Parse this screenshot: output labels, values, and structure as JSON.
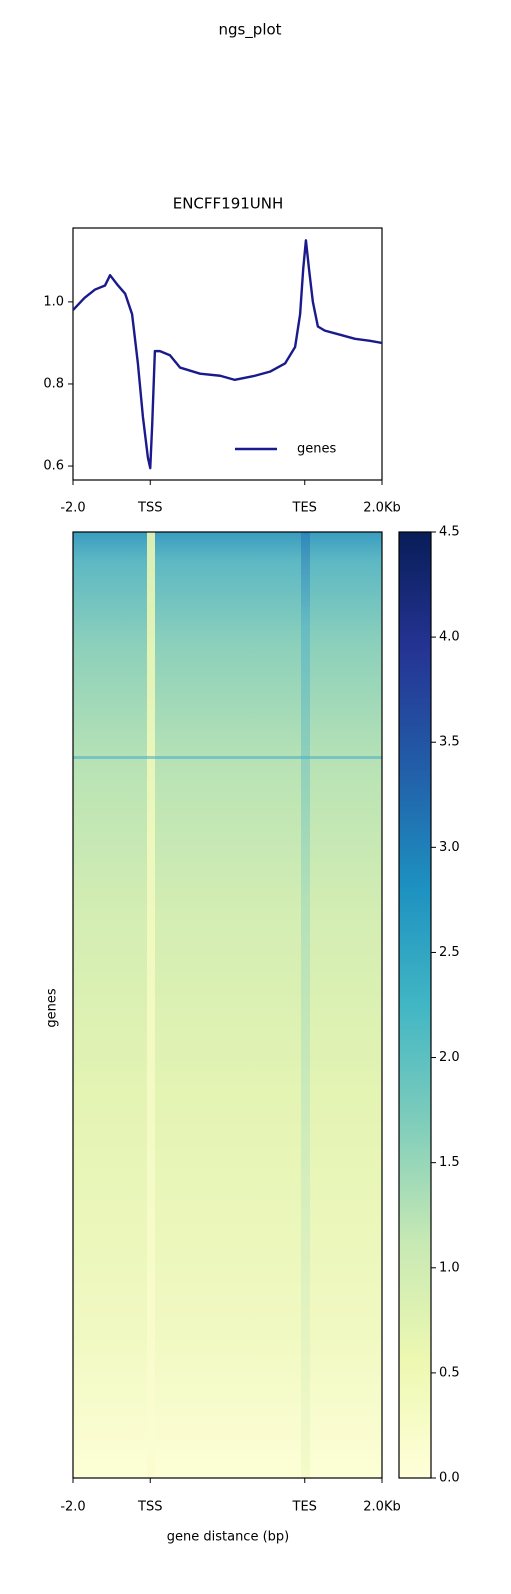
{
  "title": "ngs_plot",
  "chart_data": [
    {
      "type": "line",
      "title": "ENCFF191UNH",
      "x": [
        -2000,
        -1700,
        -1430,
        -1170,
        -1040,
        -835,
        -650,
        -470,
        -320,
        -190,
        -60,
        0,
        50,
        120,
        250,
        510,
        770,
        1290,
        1810,
        2190,
        2710,
        3100,
        3490,
        3750,
        3880,
        3960,
        4030,
        4110,
        4210,
        4340,
        4520,
        4910,
        5300,
        5690,
        6000
      ],
      "series": [
        {
          "name": "genes",
          "color": "#1a1a8c",
          "values": [
            0.98,
            1.01,
            1.03,
            1.04,
            1.065,
            1.04,
            1.02,
            0.97,
            0.85,
            0.72,
            0.62,
            0.595,
            0.7,
            0.88,
            0.88,
            0.87,
            0.84,
            0.825,
            0.82,
            0.81,
            0.82,
            0.83,
            0.85,
            0.89,
            0.97,
            1.08,
            1.15,
            1.08,
            1.0,
            0.94,
            0.93,
            0.92,
            0.91,
            0.905,
            0.9
          ]
        }
      ],
      "xlim": [
        -2000,
        6000
      ],
      "xticks": [
        {
          "value": -2000,
          "label": "-2.0"
        },
        {
          "value": 0,
          "label": "TSS"
        },
        {
          "value": 4000,
          "label": "TES"
        },
        {
          "value": 6000,
          "label": "2.0Kb"
        }
      ],
      "ylim": [
        0.566,
        1.18
      ],
      "yticks": [
        {
          "value": 0.6,
          "label": "0.6"
        },
        {
          "value": 0.8,
          "label": "0.8"
        },
        {
          "value": 1.0,
          "label": "1.0"
        }
      ],
      "legend": "lower right"
    },
    {
      "type": "heatmap",
      "xlabel": "gene distance (bp)",
      "ylabel": "genes",
      "xlim": [
        -2000,
        6000
      ],
      "xticks": [
        {
          "value": -2000,
          "label": "-2.0"
        },
        {
          "value": 0,
          "label": "TSS"
        },
        {
          "value": 4000,
          "label": "TES"
        },
        {
          "value": 6000,
          "label": "2.0Kb"
        }
      ],
      "clim": [
        0,
        4.5
      ],
      "cticks": [
        {
          "value": 0,
          "label": "0.0"
        },
        0.5,
        {
          "value": 1,
          "label": "1.0"
        },
        1.5,
        {
          "value": 2,
          "label": "2.0"
        },
        2.5,
        {
          "value": 3,
          "label": "3.0"
        },
        3.5,
        {
          "value": 4,
          "label": "4.0"
        },
        4.5
      ],
      "colormap": "YlGnBu"
    }
  ]
}
